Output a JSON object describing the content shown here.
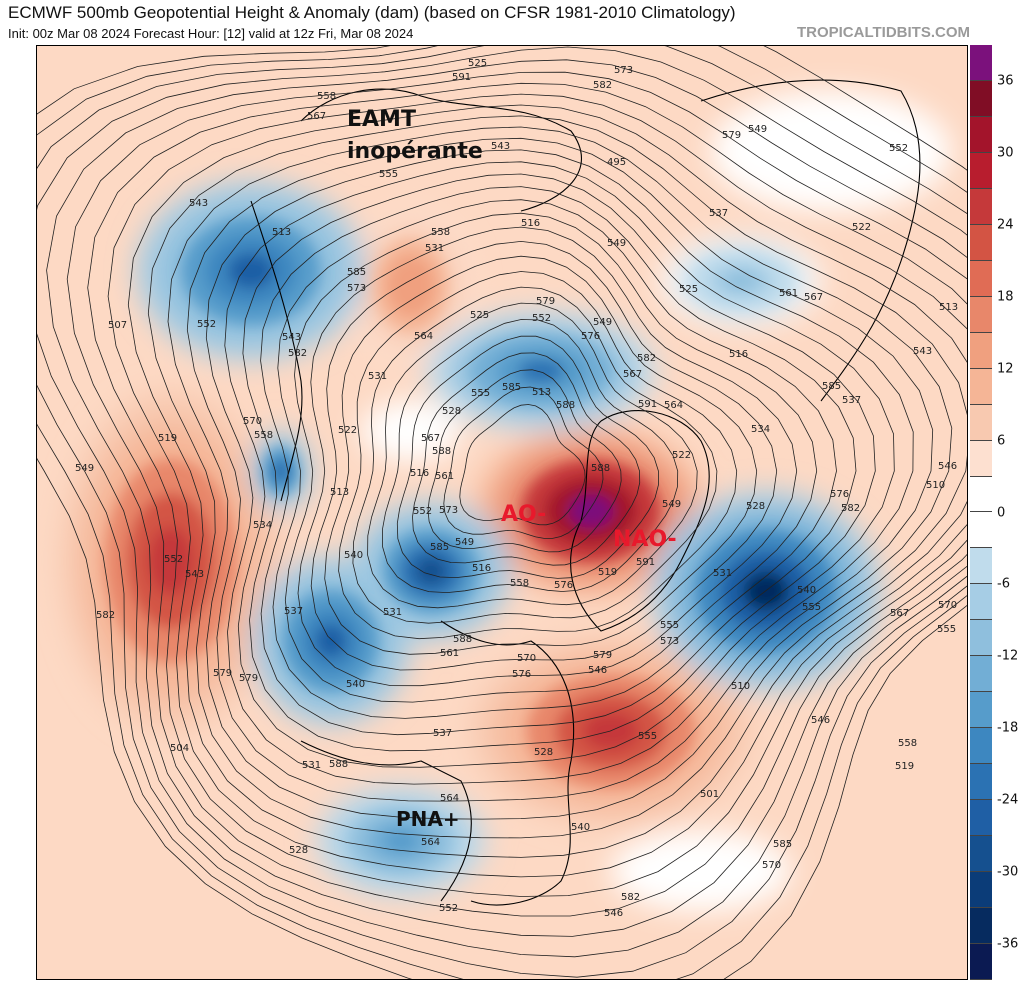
{
  "header": {
    "title": "ECMWF 500mb Geopotential Height & Anomaly (dam) (based on CFSR 1981-2010 Climatology)",
    "subtitle": "Init: 00z Mar 08 2024   Forecast Hour: [12]   valid at 12z Fri, Mar 08 2024",
    "brand": "TROPICALTIDBITS.COM"
  },
  "annotations": [
    {
      "text": "EAMT",
      "color": "#111111"
    },
    {
      "text": "inopérante",
      "color": "#111111"
    },
    {
      "text": "AO-",
      "color": "#e8192c"
    },
    {
      "text": "NAO-",
      "color": "#e8192c"
    },
    {
      "text": "PNA+",
      "color": "#111111"
    }
  ],
  "contour_labels": [
    "588",
    "585",
    "579",
    "573",
    "570",
    "567",
    "564",
    "558",
    "555",
    "552",
    "549",
    "546",
    "543",
    "537",
    "531",
    "525",
    "519",
    "516",
    "582",
    "576",
    "585",
    "582",
    "579",
    "573",
    "570",
    "567",
    "564",
    "561",
    "558",
    "555",
    "552",
    "549",
    "546",
    "528",
    "522",
    "531",
    "516",
    "510",
    "519",
    "522",
    "552",
    "555",
    "549",
    "540",
    "549",
    "555",
    "552",
    "543",
    "528",
    "585",
    "591",
    "513",
    "525",
    "528",
    "513",
    "510",
    "504",
    "513",
    "519",
    "522",
    "516",
    "537",
    "555",
    "567",
    "582",
    "588",
    "576",
    "531",
    "534",
    "540",
    "543",
    "546",
    "549",
    "552",
    "558",
    "564",
    "528",
    "537",
    "495",
    "501",
    "507",
    "513",
    "516",
    "525",
    "531",
    "534",
    "537",
    "540",
    "543",
    "546",
    "549",
    "552",
    "555",
    "558",
    "561",
    "564",
    "567",
    "570",
    "573",
    "576",
    "579",
    "582",
    "585",
    "588",
    "591",
    "558",
    "561",
    "567",
    "570",
    "573",
    "576",
    "579",
    "582",
    "585",
    "588",
    "591",
    "588",
    "531",
    "540",
    "543",
    "579",
    "582"
  ],
  "colorbar": {
    "labels": [
      "36",
      "30",
      "24",
      "18",
      "12",
      "6",
      "0",
      "-6",
      "-12",
      "-18",
      "-24",
      "-30",
      "-36"
    ],
    "colors": [
      "#7b117c",
      "#800d25",
      "#a3142b",
      "#b81d2e",
      "#c5393a",
      "#d35444",
      "#e06c55",
      "#e8876a",
      "#f0a07f",
      "#f5b596",
      "#f8c9b0",
      "#fde0d0",
      "#ffffff",
      "#ffffff",
      "#c0dcec",
      "#a6cde5",
      "#8fbfdd",
      "#72aed5",
      "#569ccb",
      "#3d87c0",
      "#2b72b3",
      "#1f5fa5",
      "#15508f",
      "#0b3c78",
      "#062b5f",
      "#0b1a52"
    ]
  },
  "anomaly_features": [
    {
      "name": "pacific-ridge",
      "value": 27
    },
    {
      "name": "greenland-ridge",
      "value": 39
    },
    {
      "name": "east-america-ridge",
      "value": 27
    },
    {
      "name": "siberia-ridge",
      "value": 15
    },
    {
      "name": "ne-asia-trough",
      "value": -24
    },
    {
      "name": "arctic-trough",
      "value": -21
    },
    {
      "name": "alaska-trough",
      "value": -27
    },
    {
      "name": "bering-trough",
      "value": -24
    },
    {
      "name": "kamchatka-low",
      "value": -24
    },
    {
      "name": "europe-trough",
      "value": -33
    },
    {
      "name": "us-west-trough",
      "value": -15
    },
    {
      "name": "scandinavia-trough",
      "value": -9
    }
  ]
}
